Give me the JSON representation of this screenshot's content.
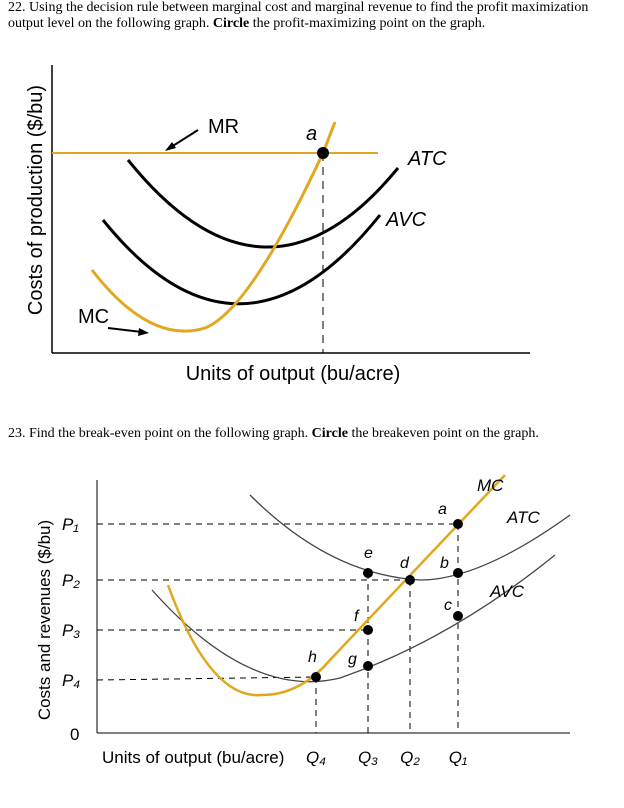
{
  "question1": {
    "number": "22.",
    "text_before": "Using the decision rule between marginal cost and marginal revenue to find the profit maximization output level on the following graph.",
    "bold": "Circle",
    "text_after": "the profit-maximizing point on the graph."
  },
  "graph1": {
    "y_axis_label": "Costs of production ($/bu)",
    "x_axis_label": "Units of output (bu/acre)",
    "mr_label": "MR",
    "point_label": "a",
    "atc_label": "ATC",
    "avc_label": "AVC",
    "mc_label": "MC"
  },
  "question2": {
    "number": "23.",
    "text_before": "Find the break-even point on the following graph.",
    "bold": "Circle",
    "text_after": "the breakeven point on the graph."
  },
  "graph2": {
    "y_axis_label": "Costs and revenues ($/bu)",
    "x_axis_label": "Units of output (bu/acre)",
    "mc_label": "MC",
    "atc_label": "ATC",
    "avc_label": "AVC",
    "price_labels": [
      "P₁",
      "P₂",
      "P₃",
      "P₄"
    ],
    "origin_label": "0",
    "quantity_labels": [
      "Q₄",
      "Q₃",
      "Q₂",
      "Q₁"
    ],
    "point_labels": [
      "a",
      "b",
      "c",
      "d",
      "e",
      "f",
      "g",
      "h"
    ]
  }
}
